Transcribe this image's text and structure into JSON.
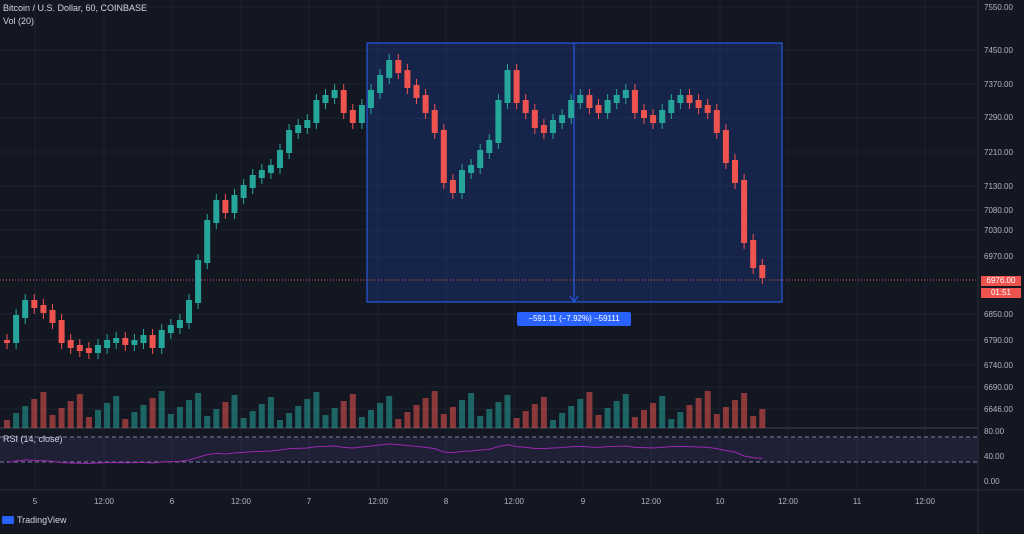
{
  "legend": {
    "main": "Bitcoin / U.S. Dollar, 60, COINBASE",
    "volume": "Vol (20)",
    "rsi": "RSI (14, close)"
  },
  "price_axis": [
    "7550.00",
    "7450.00",
    "7370.00",
    "7290.00",
    "7210.00",
    "7130.00",
    "7080.00",
    "7030.00",
    "6970.00",
    "6850.00",
    "6790.00",
    "6740.00",
    "6690.00",
    "6646.00"
  ],
  "rsi_axis": [
    "80.00",
    "40.00",
    "0.00"
  ],
  "time_axis": [
    "5",
    "12:00",
    "6",
    "12:00",
    "7",
    "12:00",
    "8",
    "12:00",
    "9",
    "12:00",
    "10",
    "12:00",
    "11",
    "12:00"
  ],
  "price_tag": {
    "price": "6976.00",
    "countdown": "01:51"
  },
  "measure_label": "−591.11 (−7.92%) −59111",
  "branding": "TradingView",
  "colors": {
    "up": "#26a69a",
    "down": "#ef5350",
    "background": "#131722",
    "measure": "#2962ff",
    "rsi": "#9c27b0"
  }
}
